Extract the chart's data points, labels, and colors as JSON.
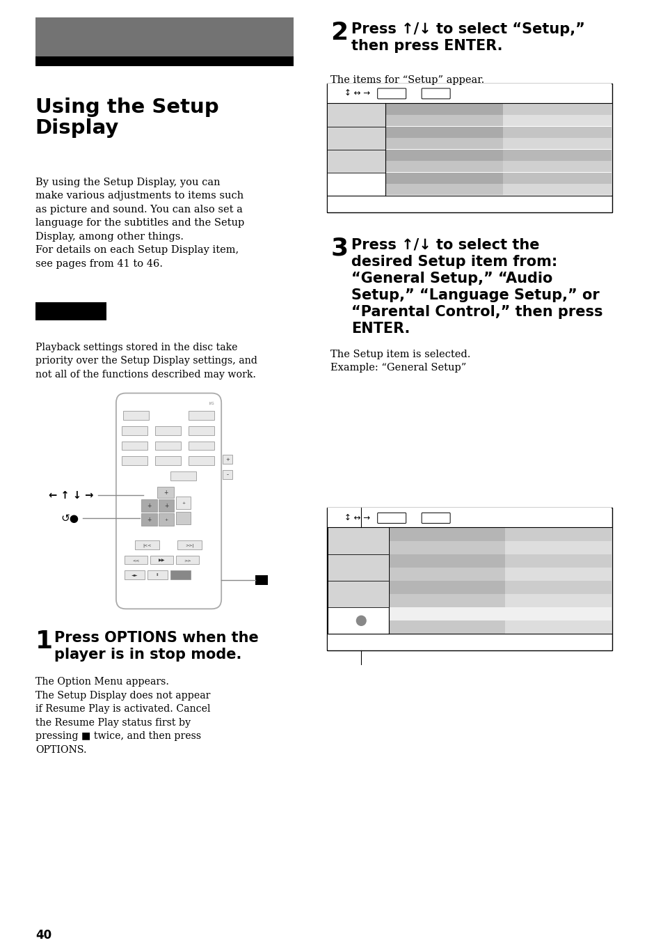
{
  "bg_color": "#ffffff",
  "page_number": "40",
  "header_gray": "#737373",
  "header_black": "#000000",
  "title": "Using the Setup\nDisplay",
  "body_text_1": "By using the Setup Display, you can\nmake various adjustments to items such\nas picture and sound. You can also set a\nlanguage for the subtitles and the Setup\nDisplay, among other things.\nFor details on each Setup Display item,\nsee pages from 41 to 46.",
  "note_text": "Playback settings stored in the disc take\npriority over the Setup Display settings, and\nnot all of the functions described may work.",
  "step1_num": "1",
  "step1_bold": "Press OPTIONS when the\nplayer is in stop mode.",
  "step1_body": "The Option Menu appears.\nThe Setup Display does not appear\nif Resume Play is activated. Cancel\nthe Resume Play status first by\npressing ■ twice, and then press\nOPTIONS.",
  "step2_num": "2",
  "step2_bold": "Press ↑/↓ to select “Setup,”\nthen press ENTER.",
  "step2_body": "The items for “Setup” appear.",
  "step3_num": "3",
  "step3_bold": "Press ↑/↓ to select the\ndesired Setup item from:\n“General Setup,” “Audio\nSetup,” “Language Setup,” or\n“Parental Control,” then press\nENTER.",
  "step3_body": "The Setup item is selected.\nExample: “General Setup”"
}
